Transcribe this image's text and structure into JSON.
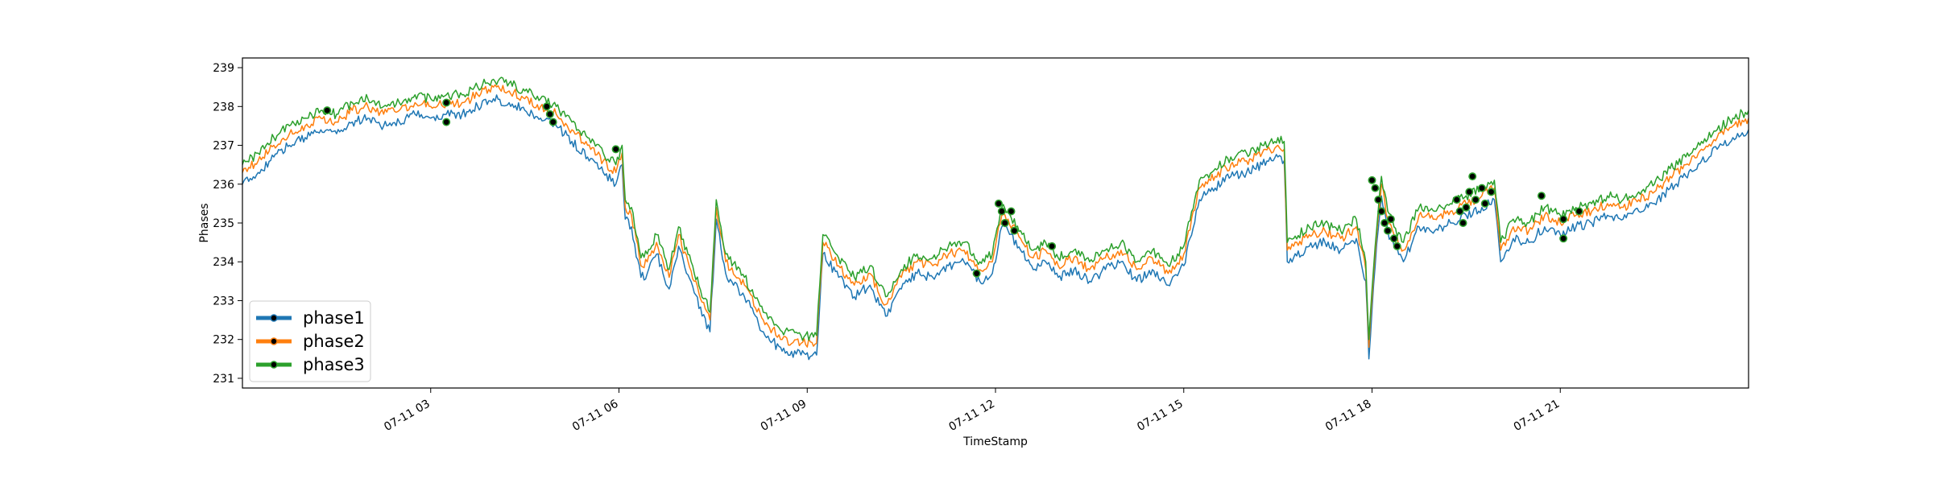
{
  "chart_data": {
    "type": "line",
    "xlabel": "TimeStamp",
    "ylabel": "Phases",
    "x_unit": "hours since 07-11 00:00",
    "xlim": [
      0.0,
      24.0
    ],
    "ylim": [
      230.75,
      239.25
    ],
    "y_ticks": [
      231,
      232,
      233,
      234,
      235,
      236,
      237,
      238,
      239
    ],
    "x_ticks": [
      {
        "x": 3,
        "label": "07-11 03"
      },
      {
        "x": 6,
        "label": "07-11 06"
      },
      {
        "x": 9,
        "label": "07-11 09"
      },
      {
        "x": 12,
        "label": "07-11 12"
      },
      {
        "x": 15,
        "label": "07-11 15"
      },
      {
        "x": 18,
        "label": "07-11 18"
      },
      {
        "x": 21,
        "label": "07-11 21"
      }
    ],
    "legend_position": "lower-left",
    "grid": false,
    "x": [
      0.0,
      0.25,
      0.5,
      0.75,
      1.0,
      1.25,
      1.5,
      1.75,
      2.0,
      2.25,
      2.5,
      2.75,
      3.0,
      3.25,
      3.5,
      3.75,
      4.0,
      4.25,
      4.5,
      4.75,
      5.0,
      5.25,
      5.5,
      5.75,
      5.95,
      6.05,
      6.1,
      6.2,
      6.35,
      6.45,
      6.6,
      6.8,
      6.95,
      7.2,
      7.45,
      7.55,
      7.7,
      8.0,
      8.3,
      8.6,
      8.9,
      9.15,
      9.25,
      9.5,
      9.75,
      10.0,
      10.25,
      10.5,
      10.75,
      11.0,
      11.25,
      11.5,
      11.75,
      11.95,
      12.1,
      12.2,
      12.4,
      12.6,
      12.8,
      13.0,
      13.25,
      13.5,
      13.75,
      14.0,
      14.25,
      14.5,
      14.75,
      15.0,
      15.25,
      15.5,
      15.75,
      16.0,
      16.25,
      16.5,
      16.6,
      16.65,
      16.75,
      17.0,
      17.25,
      17.5,
      17.75,
      17.9,
      17.95,
      18.05,
      18.15,
      18.25,
      18.35,
      18.5,
      18.75,
      19.0,
      19.25,
      19.5,
      19.75,
      19.95,
      20.05,
      20.25,
      20.5,
      20.75,
      21.0,
      21.25,
      21.5,
      21.75,
      22.0,
      22.25,
      22.5,
      22.75,
      23.0,
      23.25,
      23.5,
      23.75,
      24.0
    ],
    "series": [
      {
        "name": "phase1",
        "color": "#1f77b4",
        "values": [
          236.0,
          236.3,
          236.7,
          237.0,
          237.2,
          237.4,
          237.3,
          237.6,
          237.7,
          237.5,
          237.6,
          237.8,
          237.7,
          237.8,
          237.8,
          238.0,
          238.2,
          238.1,
          237.9,
          237.7,
          237.5,
          237.1,
          236.7,
          236.3,
          236.0,
          236.5,
          235.1,
          234.9,
          233.6,
          233.7,
          234.2,
          233.3,
          234.4,
          233.2,
          232.2,
          235.1,
          233.7,
          233.1,
          232.2,
          231.7,
          231.6,
          231.6,
          234.2,
          233.6,
          233.1,
          233.4,
          232.6,
          233.3,
          233.7,
          233.6,
          233.9,
          234.0,
          233.5,
          233.7,
          234.9,
          234.8,
          234.3,
          233.8,
          234.0,
          233.6,
          233.8,
          233.5,
          233.8,
          234.0,
          233.5,
          233.8,
          233.4,
          233.9,
          235.6,
          235.9,
          236.2,
          236.3,
          236.5,
          236.7,
          236.6,
          234.0,
          234.1,
          234.4,
          234.5,
          234.3,
          234.6,
          233.5,
          231.5,
          233.9,
          235.7,
          234.8,
          234.4,
          234.0,
          234.9,
          234.8,
          235.0,
          235.2,
          235.4,
          235.6,
          234.0,
          234.6,
          234.5,
          234.9,
          234.7,
          234.9,
          235.0,
          235.2,
          235.1,
          235.3,
          235.5,
          235.9,
          236.2,
          236.6,
          236.9,
          237.2,
          237.4
        ]
      },
      {
        "name": "phase2",
        "color": "#ff7f0e",
        "values": [
          236.3,
          236.6,
          237.0,
          237.3,
          237.5,
          237.7,
          237.6,
          237.9,
          238.0,
          237.8,
          237.9,
          238.1,
          238.0,
          238.1,
          238.1,
          238.3,
          238.5,
          238.4,
          238.2,
          238.0,
          237.8,
          237.4,
          237.0,
          236.6,
          236.3,
          236.8,
          235.4,
          235.2,
          233.9,
          234.0,
          234.5,
          233.6,
          234.7,
          233.5,
          232.5,
          235.4,
          234.0,
          233.4,
          232.5,
          232.0,
          231.9,
          231.9,
          234.5,
          233.9,
          233.4,
          233.7,
          232.9,
          233.6,
          234.0,
          233.9,
          234.2,
          234.3,
          233.8,
          234.0,
          235.2,
          235.1,
          234.6,
          234.1,
          234.3,
          233.9,
          234.1,
          233.8,
          234.1,
          234.3,
          233.8,
          234.1,
          233.7,
          234.2,
          235.9,
          236.2,
          236.5,
          236.6,
          236.8,
          237.0,
          236.9,
          234.3,
          234.4,
          234.7,
          234.8,
          234.6,
          234.9,
          233.8,
          231.8,
          234.2,
          236.0,
          235.1,
          234.7,
          234.3,
          235.2,
          235.1,
          235.3,
          235.5,
          235.7,
          235.9,
          234.3,
          234.9,
          234.8,
          235.2,
          235.0,
          235.2,
          235.3,
          235.5,
          235.4,
          235.6,
          235.8,
          236.2,
          236.5,
          236.9,
          237.2,
          237.5,
          237.7
        ]
      },
      {
        "name": "phase3",
        "color": "#2ca02c",
        "values": [
          236.5,
          236.8,
          237.2,
          237.5,
          237.7,
          237.9,
          237.8,
          238.1,
          238.2,
          238.0,
          238.1,
          238.3,
          238.2,
          238.3,
          238.3,
          238.5,
          238.7,
          238.6,
          238.4,
          238.2,
          238.0,
          237.6,
          237.2,
          236.8,
          236.5,
          237.0,
          235.6,
          235.4,
          234.1,
          234.2,
          234.7,
          233.8,
          234.9,
          233.7,
          232.7,
          235.6,
          234.2,
          233.6,
          232.7,
          232.2,
          232.1,
          232.1,
          234.7,
          234.1,
          233.6,
          233.9,
          233.1,
          233.8,
          234.2,
          234.1,
          234.4,
          234.5,
          234.0,
          234.2,
          235.4,
          235.3,
          234.8,
          234.3,
          234.5,
          234.1,
          234.3,
          234.0,
          234.3,
          234.5,
          234.0,
          234.3,
          233.9,
          234.4,
          236.1,
          236.4,
          236.7,
          236.8,
          237.0,
          237.2,
          237.1,
          234.5,
          234.6,
          234.9,
          235.0,
          234.8,
          235.1,
          234.0,
          232.0,
          234.4,
          236.2,
          235.3,
          234.9,
          234.5,
          235.4,
          235.3,
          235.5,
          235.7,
          235.9,
          236.1,
          234.5,
          235.1,
          235.0,
          235.4,
          235.2,
          235.4,
          235.5,
          235.7,
          235.6,
          235.8,
          236.0,
          236.4,
          236.7,
          237.1,
          237.4,
          237.7,
          237.9
        ]
      }
    ],
    "anomaly_points": [
      {
        "x": 1.35,
        "y": 237.9
      },
      {
        "x": 3.25,
        "y": 238.1
      },
      {
        "x": 3.25,
        "y": 237.6
      },
      {
        "x": 4.85,
        "y": 238.0
      },
      {
        "x": 4.9,
        "y": 237.8
      },
      {
        "x": 4.95,
        "y": 237.6
      },
      {
        "x": 5.95,
        "y": 236.9
      },
      {
        "x": 11.7,
        "y": 233.7
      },
      {
        "x": 12.05,
        "y": 235.5
      },
      {
        "x": 12.1,
        "y": 235.3
      },
      {
        "x": 12.15,
        "y": 235.0
      },
      {
        "x": 12.25,
        "y": 235.3
      },
      {
        "x": 12.3,
        "y": 234.8
      },
      {
        "x": 12.9,
        "y": 234.4
      },
      {
        "x": 18.0,
        "y": 236.1
      },
      {
        "x": 18.05,
        "y": 235.9
      },
      {
        "x": 18.1,
        "y": 235.6
      },
      {
        "x": 18.15,
        "y": 235.3
      },
      {
        "x": 18.2,
        "y": 235.0
      },
      {
        "x": 18.25,
        "y": 234.8
      },
      {
        "x": 18.3,
        "y": 235.1
      },
      {
        "x": 18.35,
        "y": 234.6
      },
      {
        "x": 18.4,
        "y": 234.4
      },
      {
        "x": 19.35,
        "y": 235.6
      },
      {
        "x": 19.4,
        "y": 235.3
      },
      {
        "x": 19.45,
        "y": 235.0
      },
      {
        "x": 19.5,
        "y": 235.4
      },
      {
        "x": 19.55,
        "y": 235.8
      },
      {
        "x": 19.6,
        "y": 236.2
      },
      {
        "x": 19.65,
        "y": 235.6
      },
      {
        "x": 19.75,
        "y": 235.9
      },
      {
        "x": 19.8,
        "y": 235.5
      },
      {
        "x": 19.9,
        "y": 235.8
      },
      {
        "x": 20.7,
        "y": 235.7
      },
      {
        "x": 21.05,
        "y": 235.1
      },
      {
        "x": 21.05,
        "y": 234.6
      },
      {
        "x": 21.3,
        "y": 235.3
      }
    ]
  }
}
